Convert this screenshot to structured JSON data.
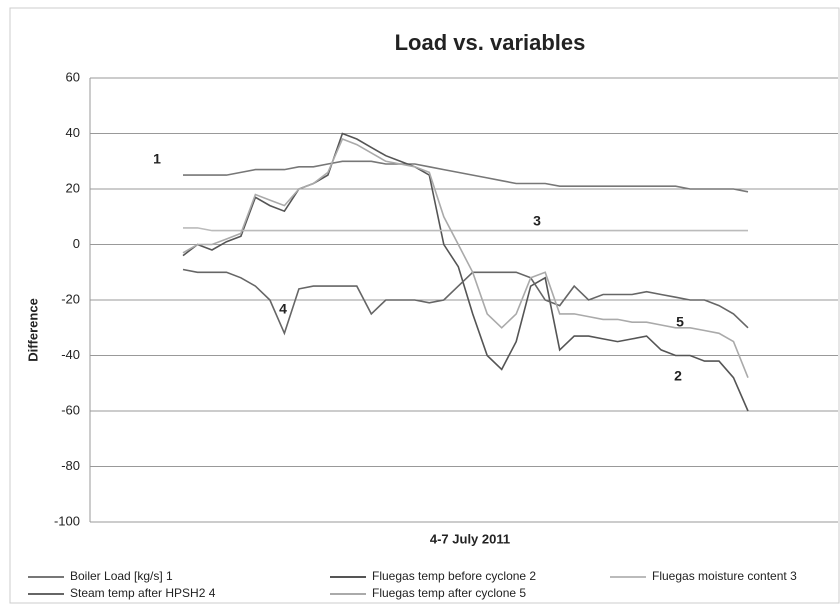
{
  "chart_data": {
    "type": "line",
    "title": "Load  vs. variables",
    "xlabel": "4-7 July 2011",
    "ylabel": "Difference",
    "categories": [
      null,
      null,
      null,
      null,
      null,
      null,
      null,
      null,
      null,
      null,
      null,
      null,
      null,
      null,
      null,
      null,
      null,
      null,
      null,
      null,
      null,
      null,
      null,
      null,
      null,
      null,
      null,
      null,
      null,
      null,
      null,
      null,
      null,
      null,
      null,
      null,
      null,
      null,
      null,
      null
    ],
    "ylim": [
      -100,
      60
    ],
    "yticks": [
      -100,
      -80,
      -60,
      -40,
      -20,
      0,
      20,
      40,
      60
    ],
    "grid": true,
    "legend": "bottom",
    "series": [
      {
        "name": "Boiler Load [kg/s] 1",
        "color": "#777777",
        "values": [
          25,
          25,
          25,
          25,
          26,
          27,
          27,
          27,
          28,
          28,
          29,
          30,
          30,
          30,
          29,
          29,
          29,
          28,
          27,
          26,
          25,
          24,
          23,
          22,
          22,
          22,
          21,
          21,
          21,
          21,
          21,
          21,
          21,
          21,
          21,
          20,
          20,
          20,
          20,
          19
        ]
      },
      {
        "name": "Fluegas temp before cyclone 2",
        "color": "#555555",
        "values": [
          -4,
          0,
          -2,
          1,
          3,
          17,
          14,
          12,
          20,
          22,
          25,
          40,
          38,
          35,
          32,
          30,
          28,
          25,
          0,
          -8,
          -25,
          -40,
          -45,
          -35,
          -15,
          -12,
          -38,
          -33,
          -33,
          -34,
          -35,
          -34,
          -33,
          -38,
          -40,
          -40,
          -42,
          -42,
          -48,
          -60
        ]
      },
      {
        "name": "Fluegas moisture content 3",
        "color": "#bbbbbb",
        "values": [
          6,
          6,
          5,
          5,
          5,
          5,
          5,
          5,
          5,
          5,
          5,
          5,
          5,
          5,
          5,
          5,
          5,
          5,
          5,
          5,
          5,
          5,
          5,
          5,
          5,
          5,
          5,
          5,
          5,
          5,
          5,
          5,
          5,
          5,
          5,
          5,
          5,
          5,
          5,
          5
        ]
      },
      {
        "name": "Steam temp after HPSH2 4",
        "color": "#666666",
        "values": [
          -9,
          -10,
          -10,
          -10,
          -12,
          -15,
          -20,
          -32,
          -16,
          -15,
          -15,
          -15,
          -15,
          -25,
          -20,
          -20,
          -20,
          -21,
          -20,
          -15,
          -10,
          -10,
          -10,
          -10,
          -12,
          -20,
          -22,
          -15,
          -20,
          -18,
          -18,
          -18,
          -17,
          -18,
          -19,
          -20,
          -20,
          -22,
          -25,
          -30
        ]
      },
      {
        "name": "Fluegas temp after cyclone 5",
        "color": "#aaaaaa",
        "values": [
          -3,
          0,
          0,
          2,
          4,
          18,
          16,
          14,
          20,
          22,
          26,
          38,
          36,
          33,
          30,
          29,
          28,
          26,
          10,
          0,
          -10,
          -25,
          -30,
          -25,
          -12,
          -10,
          -25,
          -25,
          -26,
          -27,
          -27,
          -28,
          -28,
          -29,
          -30,
          -30,
          -31,
          -32,
          -35,
          -48
        ]
      }
    ],
    "annotations": [
      "1",
      "2",
      "3",
      "4",
      "5"
    ]
  }
}
